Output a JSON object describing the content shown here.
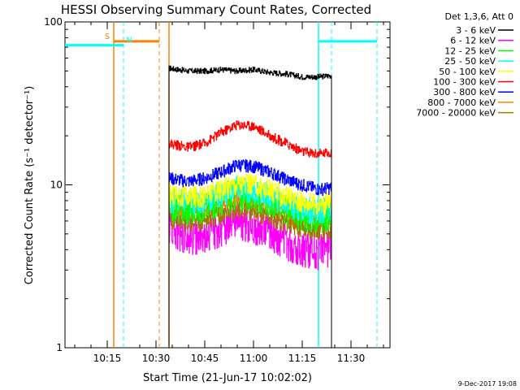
{
  "chart_data": {
    "type": "line",
    "title": "HESSI Observing Summary Count Rates, Corrected",
    "xlabel": "Start Time (21-Jun-17 10:02:02)",
    "ylabel": "Corrected Count Rate (s⁻¹ detector⁻¹)",
    "ylog": true,
    "ylim": [
      1,
      100
    ],
    "y_ticks": [
      1,
      10,
      100
    ],
    "y_tick_labels": [
      "1",
      "10",
      "100"
    ],
    "xlim": [
      "10:02",
      "11:42"
    ],
    "x_ticks": [
      "10:15",
      "10:30",
      "10:45",
      "11:00",
      "11:15",
      "11:30"
    ],
    "grid": false,
    "legend_position": "right",
    "legend_header": "Det 1,3,6, Att 0",
    "data_start": "10:34",
    "data_end": "11:24",
    "x": [
      "10:34",
      "10:40",
      "10:45",
      "10:50",
      "10:55",
      "11:00",
      "11:05",
      "11:10",
      "11:15",
      "11:20",
      "11:24"
    ],
    "series": [
      {
        "name": "3 - 6 keV",
        "color": "#000000",
        "values": [
          52,
          50,
          50,
          51,
          50,
          51,
          49,
          48,
          46,
          46,
          47
        ]
      },
      {
        "name": "6 - 12 keV",
        "color": "#ff00ff",
        "values": [
          5.5,
          5.0,
          5.0,
          5.6,
          6.2,
          5.8,
          5.3,
          4.6,
          4.2,
          4.0,
          4.2
        ]
      },
      {
        "name": "12 - 25 keV",
        "color": "#00ff00",
        "values": [
          7.5,
          7.2,
          7.5,
          8.2,
          9.0,
          8.6,
          8.0,
          7.2,
          6.6,
          6.4,
          6.6
        ]
      },
      {
        "name": "25 - 50 keV",
        "color": "#00ffff",
        "values": [
          8.2,
          7.9,
          8.1,
          8.9,
          9.6,
          9.3,
          8.6,
          7.8,
          7.2,
          7.0,
          7.1
        ]
      },
      {
        "name": "50 - 100 keV",
        "color": "#ffff00",
        "values": [
          8.8,
          8.4,
          8.6,
          9.5,
          10.3,
          10.0,
          9.3,
          8.5,
          7.9,
          7.6,
          7.8
        ]
      },
      {
        "name": "100 - 300 keV",
        "color": "#ff0000",
        "values": [
          18,
          17,
          18,
          21,
          23.5,
          23,
          20,
          18,
          16,
          15.5,
          16
        ]
      },
      {
        "name": "300 - 800 keV",
        "color": "#0000ff",
        "values": [
          11,
          10.5,
          11,
          12,
          13.3,
          13,
          12,
          10.8,
          10,
          9.4,
          9.6
        ]
      },
      {
        "name": "800 - 7000 keV",
        "color": "#ff8000",
        "values": [
          7.0,
          6.8,
          7.0,
          7.6,
          8.2,
          8.0,
          7.4,
          6.7,
          6.2,
          5.9,
          6.0
        ]
      },
      {
        "name": "7000 - 20000 keV",
        "color": "#a07800",
        "values": [
          6.2,
          6.0,
          6.1,
          6.6,
          7.1,
          6.9,
          6.4,
          5.9,
          5.5,
          5.3,
          5.4
        ]
      }
    ],
    "annotations": [
      {
        "label": "S",
        "color": "#ff8000",
        "x_line": "10:17",
        "x_end_dashed": "10:31",
        "level": 76
      },
      {
        "label": "N",
        "color": "#00ffff",
        "x_start": "10:02",
        "x_dashed": "10:20",
        "level": 72
      },
      {
        "label": "",
        "color": "#ff8000",
        "x_line": "10:34"
      },
      {
        "label": "",
        "color": "#00ffff",
        "x_line": "11:20",
        "x_dashed": "11:24"
      },
      {
        "label": "",
        "color": "#00ffff",
        "x_start": "11:20",
        "x_end_dashed": "11:38",
        "level": 76
      }
    ],
    "footer_date": "9-Dec-2017 19:08"
  }
}
